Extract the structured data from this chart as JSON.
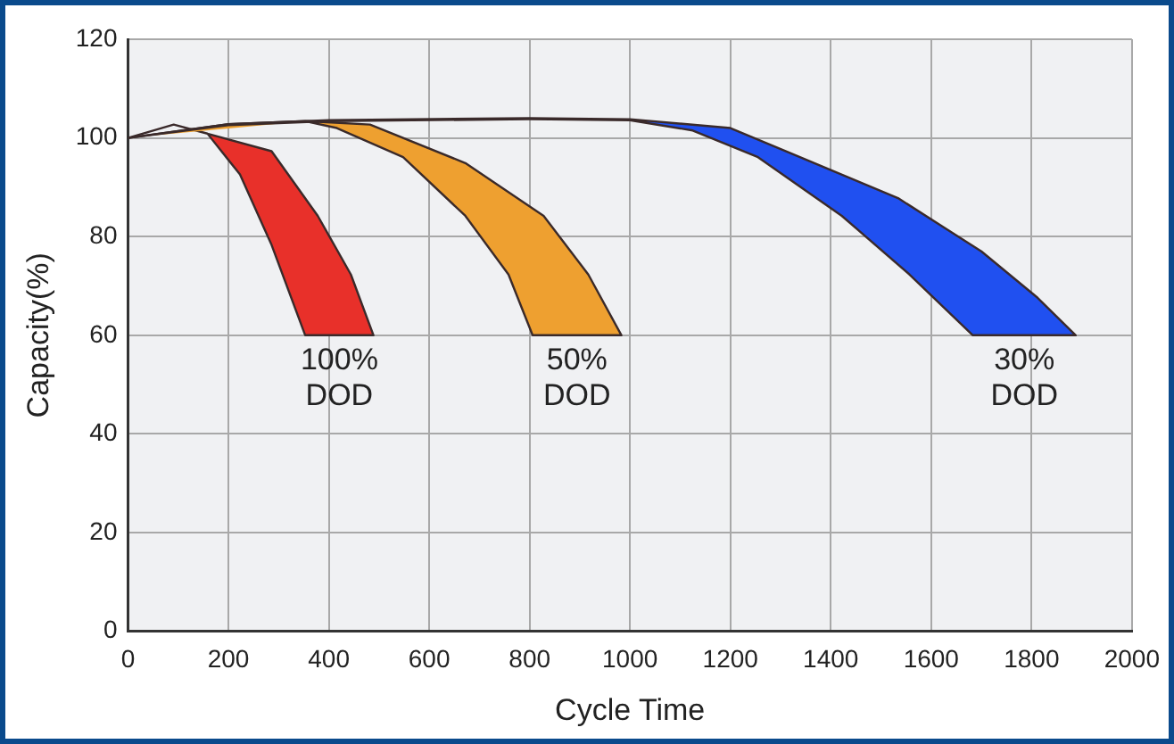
{
  "chart_data": {
    "type": "area",
    "xlabel": "Cycle Time",
    "ylabel": "Capacity(%)",
    "xlim": [
      0,
      2000
    ],
    "xticks": [
      0,
      200,
      400,
      600,
      800,
      1000,
      1200,
      1400,
      1600,
      1800,
      2000
    ],
    "ylim": [
      0,
      120
    ],
    "yticks": [
      0,
      20,
      40,
      60,
      80,
      100,
      120
    ],
    "grid": true,
    "legend": false,
    "marker": "none",
    "series": [
      {
        "name": "30% DOD",
        "color": "#2050f0",
        "x": [
          0,
          200,
          400,
          800,
          1000,
          1200,
          1311,
          1534,
          1700,
          1812,
          1888,
          1683,
          1557,
          1422,
          1255,
          1125,
          1000,
          800,
          400,
          200,
          0
        ],
        "values": [
          100,
          102.8,
          103.6,
          104,
          103.8,
          102,
          97.3,
          87.8,
          77,
          67.6,
          60,
          60,
          72.3,
          84.2,
          96.1,
          101.5,
          103.6,
          103.8,
          103.4,
          102.6,
          100
        ]
      },
      {
        "name": "50% DOD",
        "color": "#eea030",
        "x": [
          0,
          200,
          353,
          482,
          672,
          828,
          917,
          983,
          806,
          758,
          672,
          548,
          416,
          353
        ],
        "values": [
          100,
          102.8,
          103.4,
          102.7,
          94.9,
          84.2,
          72.3,
          60,
          60,
          72.3,
          84.2,
          96.1,
          102,
          103.4
        ]
      },
      {
        "name": "100% DOD",
        "color": "#e8302a",
        "x": [
          0,
          91,
          286,
          378,
          444,
          489,
          353,
          286,
          223,
          158,
          91
        ],
        "values": [
          100,
          102.7,
          97.3,
          84.2,
          72.3,
          60,
          60,
          78.3,
          92.6,
          100.9,
          102.7
        ]
      }
    ]
  }
}
